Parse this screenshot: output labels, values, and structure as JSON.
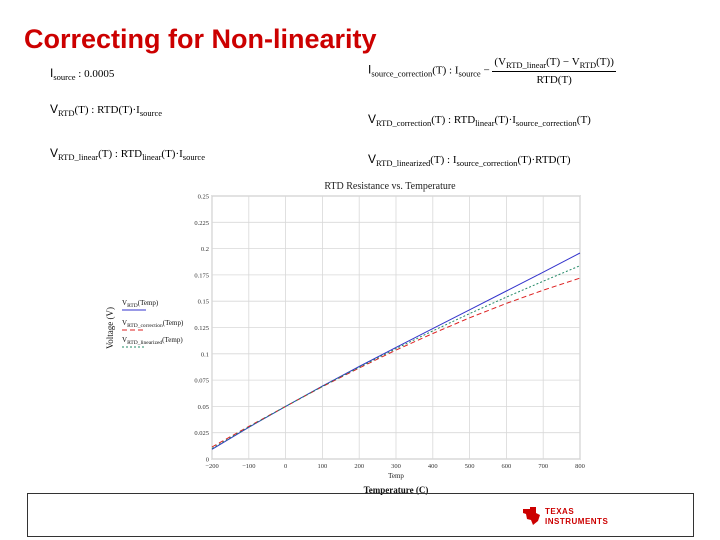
{
  "slide": {
    "title": "Correcting for Non-linearity"
  },
  "equations": {
    "i_source": {
      "name": "I",
      "sub": "source",
      "op": ":",
      "value": "0.0005"
    },
    "v_rtd": {
      "lhs": "V",
      "lhs_sub": "RTD",
      "args": "(T) :",
      "rhs": "RTD(T)·I",
      "rhs_sub": "source"
    },
    "v_rtd_linear": {
      "lhs": "V",
      "lhs_sub": "RTD_linear",
      "args": "(T) :",
      "rhs": "RTD",
      "rhs_sub": "linear",
      "rhs_tail": "(T)·I",
      "rhs_tail_sub": "source"
    },
    "i_source_correction": {
      "lhs": "I",
      "lhs_sub": "source_correction",
      "args": "(T) :",
      "rhs": "I",
      "rhs_sub": "source",
      "minus": "−",
      "num_a": "V",
      "num_a_sub": "RTD_linear",
      "num_a_args": "(T) − V",
      "num_b_sub": "RTD",
      "num_b_args": "(T)",
      "den": "RTD(T)"
    },
    "v_rtd_correction": {
      "lhs": "V",
      "lhs_sub": "RTD_correction",
      "args": "(T) :",
      "rhs": "RTD",
      "rhs_sub": "linear",
      "rhs_tail": "(T)·I",
      "rhs_tail_sub": "source_correction",
      "rhs_end": "(T)"
    },
    "v_rtd_linearized": {
      "lhs": "V",
      "lhs_sub": "RTD_linearized",
      "args": "(T) :",
      "rhs": "I",
      "rhs_sub": "source_correction",
      "rhs_tail": "(T)·RTD(T)"
    }
  },
  "chart_data": {
    "type": "line",
    "title": "RTD Resistance vs. Temperature",
    "xlabel": "Temperature (C)",
    "x_sublabel": "Temp",
    "ylabel": "Voltage (V)",
    "xlim": [
      -200,
      800
    ],
    "ylim": [
      0,
      0.25
    ],
    "x_ticks": [
      "−200",
      "−100",
      "0",
      "100",
      "200",
      "300",
      "400",
      "500",
      "600",
      "700",
      "800"
    ],
    "x_tick_values": [
      -200,
      -100,
      0,
      100,
      200,
      300,
      400,
      500,
      600,
      700,
      800
    ],
    "y_ticks": [
      "0",
      "0.025",
      "0.05",
      "0.075",
      "0.1",
      "0.125",
      "0.15",
      "0.175",
      "0.2",
      "0.225",
      "0.25"
    ],
    "y_tick_values": [
      0,
      0.025,
      0.05,
      0.075,
      0.1,
      0.125,
      0.15,
      0.175,
      0.2,
      0.225,
      0.25
    ],
    "grid": true,
    "legend_position": "left-middle",
    "x": [
      -200,
      -100,
      0,
      100,
      200,
      300,
      400,
      500,
      600,
      700,
      800
    ],
    "series": [
      {
        "name": "V_RTD(Temp)",
        "legend_main": "V",
        "legend_sub": "RTD",
        "legend_args": "(Temp)",
        "color": "#3333cc",
        "dash": "none",
        "values": [
          0.0092,
          0.0301,
          0.05,
          0.0693,
          0.0879,
          0.1061,
          0.124,
          0.1418,
          0.1597,
          0.1776,
          0.1958
        ]
      },
      {
        "name": "V_RTD_correction(Temp)",
        "legend_main": "V",
        "legend_sub": "RTD_correction",
        "legend_args": "(Temp)",
        "color": "#dd2222",
        "dash": "5,3",
        "values": [
          0.0114,
          0.031,
          0.05,
          0.0688,
          0.0865,
          0.1035,
          0.1193,
          0.1342,
          0.1479,
          0.1605,
          0.172
        ]
      },
      {
        "name": "V_RTD_linearized(Temp)",
        "legend_main": "V",
        "legend_sub": "RTD_linearized",
        "legend_args": "(Temp)",
        "color": "#228866",
        "dash": "2,2",
        "values": [
          0.01,
          0.0305,
          0.05,
          0.069,
          0.0873,
          0.1049,
          0.1218,
          0.1382,
          0.1539,
          0.169,
          0.1837
        ]
      }
    ]
  },
  "footer": {
    "logo_line1": "TEXAS",
    "logo_line2": "INSTRUMENTS",
    "brand_color": "#cc0000"
  }
}
